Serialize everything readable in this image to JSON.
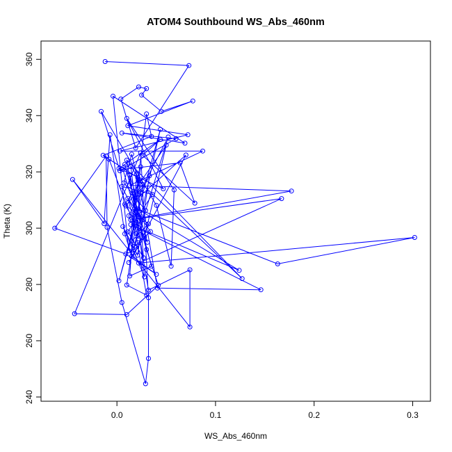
{
  "chart_data": {
    "type": "scatter",
    "title": "ATOM4 Southbound WS_Abs_460nm",
    "xlabel": "WS_Abs_460nm",
    "ylabel": "Theta (K)",
    "xlim": [
      -0.077,
      0.318
    ],
    "ylim": [
      238.5,
      366.5
    ],
    "xticks": [
      0.0,
      0.1,
      0.2,
      0.3
    ],
    "xtick_labels": [
      "0.0",
      "0.1",
      "0.2",
      "0.3"
    ],
    "yticks": [
      240,
      260,
      280,
      300,
      320,
      340,
      360
    ],
    "ytick_labels": [
      "240",
      "260",
      "280",
      "300",
      "320",
      "340",
      "360"
    ],
    "grid": false,
    "legend": "none",
    "connect_points": true,
    "color": "#0000ff",
    "marker": "open-circle",
    "series": [
      {
        "points": [
          [
            -0.012,
            359.2
          ],
          [
            0.073,
            357.8
          ],
          [
            0.019,
            328.5
          ],
          [
            0.004,
            345.9
          ],
          [
            0.022,
            350.2
          ],
          [
            0.03,
            349.6
          ],
          [
            0.025,
            347.3
          ],
          [
            0.045,
            341.5
          ],
          [
            0.077,
            345.2
          ],
          [
            0.011,
            336.4
          ],
          [
            0.072,
            333.2
          ],
          [
            0.003,
            327.4
          ],
          [
            0.087,
            327.4
          ],
          [
            0.013,
            315.2
          ],
          [
            0.177,
            313.2
          ],
          [
            0.014,
            303.0
          ],
          [
            0.167,
            310.5
          ],
          [
            0.022,
            287.6
          ],
          [
            0.302,
            296.7
          ],
          [
            0.163,
            287.3
          ],
          [
            0.021,
            306.8
          ],
          [
            0.124,
            285.0
          ],
          [
            0.014,
            301.3
          ],
          [
            0.146,
            278.1
          ],
          [
            0.041,
            278.7
          ],
          [
            0.022,
            316.8
          ],
          [
            0.127,
            282.1
          ],
          [
            0.01,
            324.2
          ],
          [
            0.032,
            278.0
          ],
          [
            0.074,
            285.2
          ],
          [
            0.074,
            264.9
          ],
          [
            -0.045,
            317.3
          ],
          [
            -0.013,
            301.6
          ],
          [
            -0.007,
            333.2
          ],
          [
            0.008,
            298.0
          ],
          [
            0.015,
            290.0
          ],
          [
            0.04,
            283.6
          ],
          [
            0.009,
            290.8
          ],
          [
            -0.063,
            300.0
          ],
          [
            -0.011,
            325.6
          ],
          [
            -0.01,
            300.3
          ],
          [
            0.005,
            273.6
          ],
          [
            0.029,
            244.7
          ],
          [
            0.032,
            253.7
          ],
          [
            0.032,
            275.3
          ],
          [
            0.024,
            326.8
          ],
          [
            -0.043,
            269.6
          ],
          [
            0.01,
            269.3
          ],
          [
            0.042,
            279.7
          ],
          [
            0.03,
            292.4
          ],
          [
            0.006,
            320.9
          ],
          [
            0.064,
            323.2
          ],
          [
            0.079,
            308.9
          ],
          [
            0.026,
            325.9
          ],
          [
            0.044,
            331.5
          ],
          [
            0.002,
            321.2
          ],
          [
            0.047,
            314.0
          ],
          [
            0.01,
            339.0
          ],
          [
            0.058,
            313.6
          ],
          [
            0.055,
            286.5
          ],
          [
            0.04,
            308.1
          ],
          [
            -0.016,
            341.5
          ],
          [
            0.003,
            320.4
          ],
          [
            0.06,
            331.8
          ],
          [
            0.005,
            333.8
          ],
          [
            0.069,
            330.2
          ],
          [
            -0.004,
            346.9
          ],
          [
            0.012,
            292.0
          ],
          [
            0.03,
            340.6
          ],
          [
            0.035,
            332.6
          ],
          [
            -0.014,
            325.9
          ],
          [
            0.021,
            318.0
          ],
          [
            -0.008,
            324.5
          ],
          [
            0.018,
            300.8
          ],
          [
            0.002,
            281.3
          ],
          [
            0.044,
            335.1
          ],
          [
            0.016,
            291.2
          ],
          [
            0.052,
            332.4
          ],
          [
            0.019,
            310.0
          ],
          [
            0.07,
            326.0
          ],
          [
            0.012,
            287.8
          ],
          [
            0.028,
            297.0
          ],
          [
            0.05,
            329.5
          ],
          [
            0.008,
            308.5
          ],
          [
            0.032,
            301.5
          ],
          [
            0.015,
            295.4
          ],
          [
            0.024,
            321.8
          ],
          [
            0.018,
            305.6
          ],
          [
            0.005,
            314.8
          ],
          [
            0.036,
            312.0
          ],
          [
            0.011,
            298.7
          ],
          [
            0.027,
            289.5
          ],
          [
            0.02,
            319.3
          ],
          [
            0.013,
            283.0
          ],
          [
            0.035,
            286.5
          ],
          [
            0.008,
            322.7
          ],
          [
            0.023,
            303.8
          ],
          [
            0.016,
            312.5
          ],
          [
            0.031,
            295.0
          ],
          [
            0.009,
            307.9
          ],
          [
            0.026,
            315.5
          ],
          [
            0.014,
            322.1
          ],
          [
            0.028,
            282.7
          ],
          [
            0.006,
            300.6
          ],
          [
            0.021,
            290.4
          ],
          [
            0.033,
            318.6
          ],
          [
            0.012,
            304.4
          ],
          [
            0.019,
            298.2
          ],
          [
            0.03,
            276.2
          ],
          [
            0.01,
            279.8
          ],
          [
            0.024,
            312.8
          ],
          [
            0.015,
            326.3
          ],
          [
            0.007,
            316.1
          ],
          [
            0.029,
            306.3
          ],
          [
            0.018,
            293.6
          ],
          [
            0.034,
            298.8
          ],
          [
            0.011,
            310.6
          ],
          [
            0.022,
            296.2
          ],
          [
            0.013,
            318.9
          ],
          [
            0.027,
            303.1
          ]
        ]
      }
    ]
  }
}
